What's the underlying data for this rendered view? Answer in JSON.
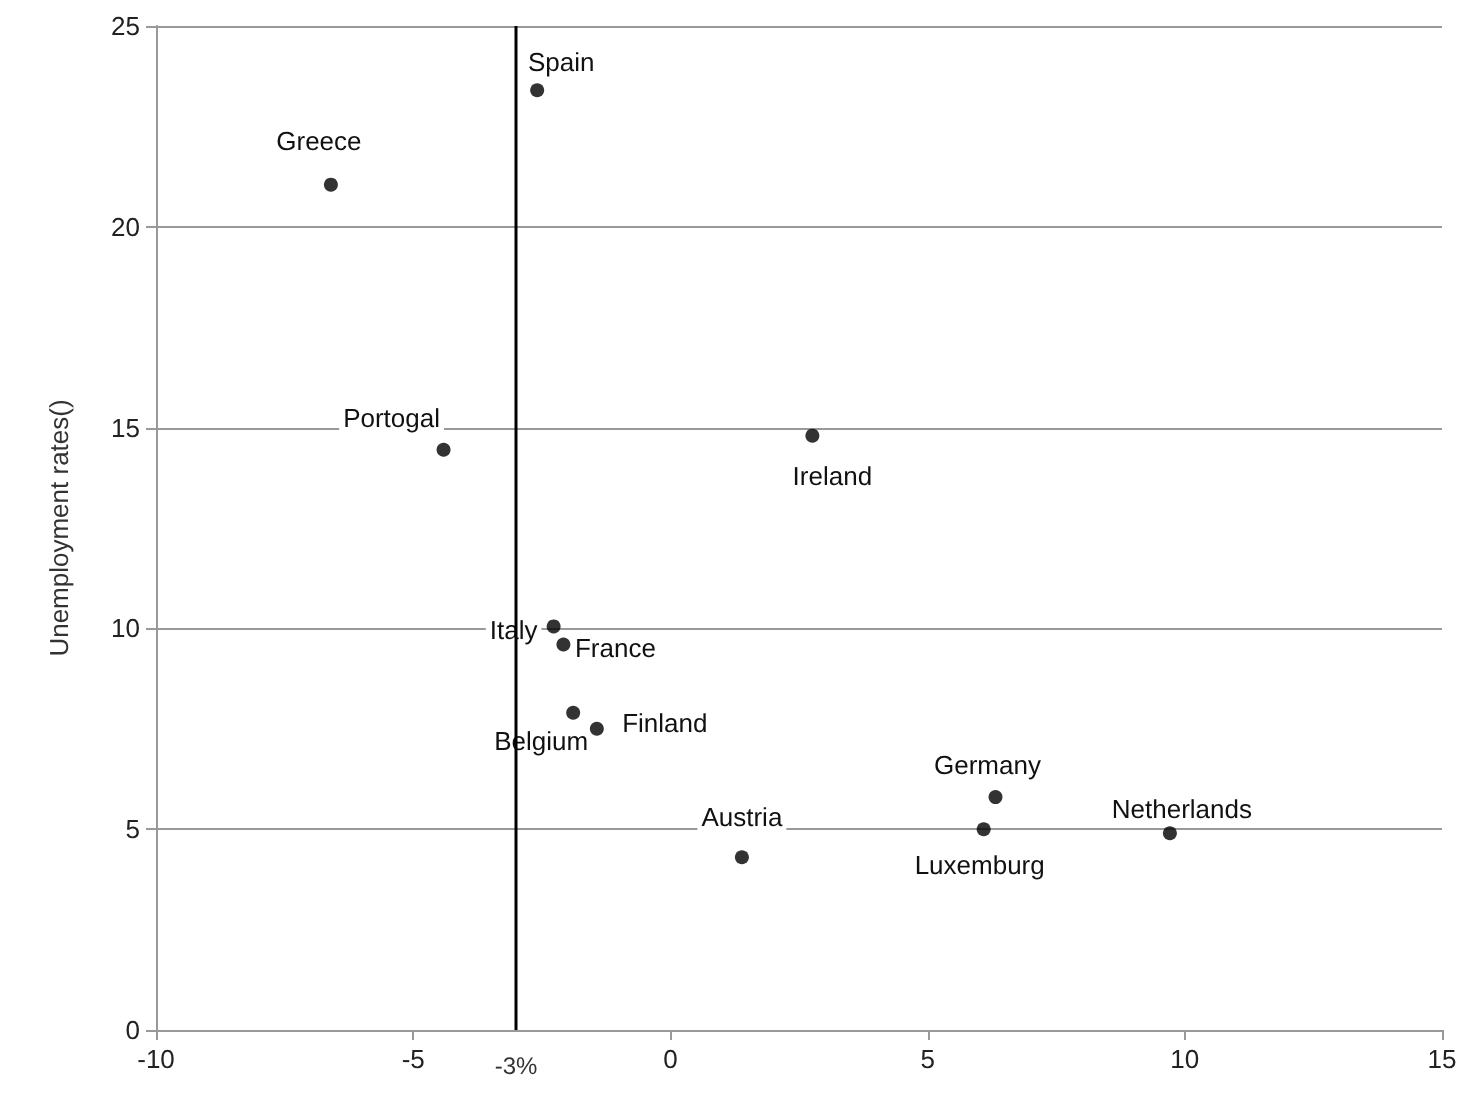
{
  "chart_data": {
    "type": "scatter",
    "ylabel": "Unemployment rates()",
    "x": [
      -2.59,
      -6.6,
      -4.41,
      2.76,
      -2.27,
      -2.08,
      -1.89,
      -1.43,
      1.39,
      6.32,
      6.09,
      9.71
    ],
    "values": [
      23.4,
      21.05,
      14.45,
      14.8,
      10.05,
      9.6,
      7.9,
      7.5,
      4.3,
      5.8,
      5.0,
      4.9
    ],
    "color": "#000000",
    "marker": "circle",
    "xlim": [
      -10,
      15
    ],
    "xticks": [
      -10,
      -5,
      0,
      5,
      10,
      15
    ],
    "ylim": [
      0,
      25
    ],
    "yticks": [
      0,
      5,
      10,
      15,
      20,
      25
    ],
    "grid": "y",
    "ref_lines": [
      {
        "axis": "x",
        "value": -3,
        "label": "-3%",
        "color": "#000000"
      }
    ],
    "annotations": [
      {
        "text": "Spain",
        "x": -2.59,
        "y": 23.4
      },
      {
        "text": "Greece",
        "x": -6.6,
        "y": 21.05
      },
      {
        "text": "Portogal",
        "x": -4.41,
        "y": 14.45
      },
      {
        "text": "Ireland",
        "x": 2.76,
        "y": 14.8
      },
      {
        "text": "Italy",
        "x": -2.27,
        "y": 10.05
      },
      {
        "text": "France",
        "x": -2.08,
        "y": 9.6
      },
      {
        "text": "Belgium",
        "x": -1.89,
        "y": 7.9
      },
      {
        "text": "Finland",
        "x": -1.43,
        "y": 7.5
      },
      {
        "text": "Austria",
        "x": 1.39,
        "y": 4.3
      },
      {
        "text": "Germany",
        "x": 6.32,
        "y": 5.8
      },
      {
        "text": "Luxemburg",
        "x": 6.09,
        "y": 5.0
      },
      {
        "text": "Netherlands",
        "x": 9.71,
        "y": 4.9
      }
    ]
  }
}
